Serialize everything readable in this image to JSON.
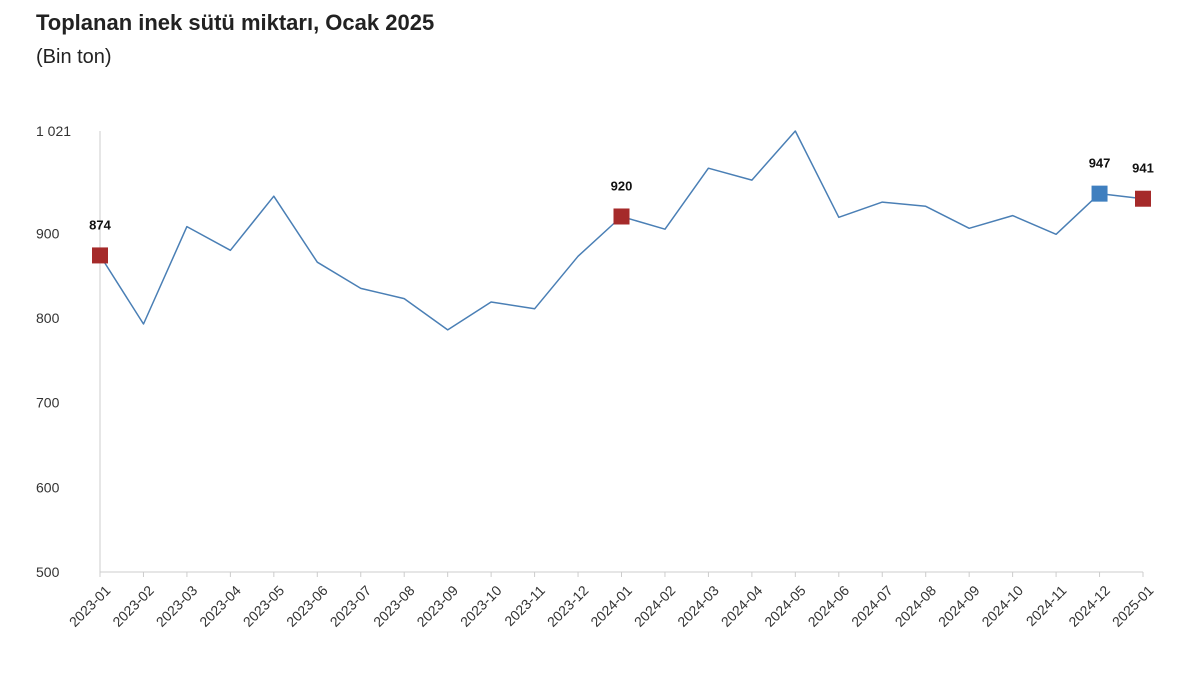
{
  "chart_data": {
    "type": "line",
    "title": "Toplanan inek sütü miktarı, Ocak 2025",
    "subtitle": "(Bin ton)",
    "xlabel": "",
    "ylabel": "",
    "ylim": [
      500,
      1021
    ],
    "yticks": [
      "1 021",
      "900",
      "800",
      "700",
      "600",
      "500"
    ],
    "ytick_values": [
      1021,
      900,
      800,
      700,
      600,
      500
    ],
    "grid": false,
    "line_color": "#4a7fb5",
    "categories": [
      "2023-01",
      "2023-02",
      "2023-03",
      "2023-04",
      "2023-05",
      "2023-06",
      "2023-07",
      "2023-08",
      "2023-09",
      "2023-10",
      "2023-11",
      "2023-12",
      "2024-01",
      "2024-02",
      "2024-03",
      "2024-04",
      "2024-05",
      "2024-06",
      "2024-07",
      "2024-08",
      "2024-09",
      "2024-10",
      "2024-11",
      "2024-12",
      "2025-01"
    ],
    "values": [
      874,
      793,
      908,
      880,
      944,
      866,
      835,
      823,
      786,
      819,
      811,
      873,
      920,
      905,
      977,
      963,
      1021,
      919,
      937,
      932,
      906,
      921,
      899,
      947,
      941
    ],
    "markers": [
      {
        "index": 0,
        "label": "874",
        "color": "#a52a2a"
      },
      {
        "index": 12,
        "label": "920",
        "color": "#a52a2a"
      },
      {
        "index": 23,
        "label": "947",
        "color": "#3f7fbf"
      },
      {
        "index": 24,
        "label": "941",
        "color": "#a52a2a"
      }
    ]
  }
}
